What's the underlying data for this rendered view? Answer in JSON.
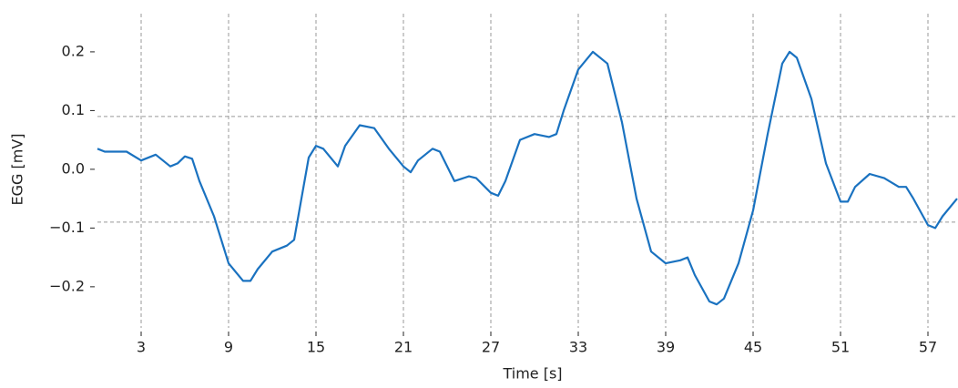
{
  "chart_data": {
    "type": "line",
    "xlabel": "Time [s]",
    "ylabel": "EGG [mV]",
    "x": [
      0,
      0.5,
      2,
      3,
      4,
      5,
      5.5,
      6,
      6.5,
      7,
      8,
      9,
      10,
      10.5,
      11,
      12,
      13,
      13.5,
      14,
      14.5,
      15,
      15.5,
      16.5,
      17,
      18,
      19,
      20,
      21,
      21.5,
      22,
      23,
      23.5,
      24.5,
      25.5,
      26,
      27,
      27.5,
      28,
      29,
      30,
      31,
      31.5,
      32,
      33,
      34,
      35,
      36,
      37,
      38,
      39,
      40,
      40.5,
      41,
      42,
      42.5,
      43,
      44,
      45,
      46,
      47,
      47.5,
      48,
      49,
      50,
      51,
      51.5,
      52,
      53,
      54,
      55,
      55.5,
      56,
      57,
      57.5,
      58,
      59
    ],
    "series": [
      {
        "name": "EGG",
        "color": "#1a72c0",
        "values": [
          0.035,
          0.03,
          0.03,
          0.015,
          0.025,
          0.005,
          0.01,
          0.022,
          0.018,
          -0.02,
          -0.08,
          -0.16,
          -0.19,
          -0.19,
          -0.17,
          -0.14,
          -0.13,
          -0.12,
          -0.05,
          0.02,
          0.04,
          0.035,
          0.005,
          0.04,
          0.075,
          0.07,
          0.035,
          0.005,
          -0.005,
          0.015,
          0.035,
          0.03,
          -0.02,
          -0.012,
          -0.015,
          -0.04,
          -0.045,
          -0.02,
          0.05,
          0.06,
          0.055,
          0.06,
          0.1,
          0.17,
          0.2,
          0.18,
          0.08,
          -0.05,
          -0.14,
          -0.16,
          -0.155,
          -0.15,
          -0.18,
          -0.225,
          -0.23,
          -0.22,
          -0.16,
          -0.07,
          0.06,
          0.18,
          0.2,
          0.19,
          0.12,
          0.01,
          -0.055,
          -0.055,
          -0.03,
          -0.008,
          -0.015,
          -0.03,
          -0.03,
          -0.05,
          -0.095,
          -0.1,
          -0.08,
          -0.05
        ]
      }
    ],
    "xlim": [
      0,
      59
    ],
    "xticks": [
      3,
      9,
      15,
      21,
      27,
      33,
      39,
      45,
      51,
      57
    ],
    "ylim": [
      -0.27,
      0.265
    ],
    "yticks": [
      {
        "value": -0.2,
        "label": "−0.2"
      },
      {
        "value": -0.1,
        "label": "−0.1"
      },
      {
        "value": 0,
        "label": "0.0"
      },
      0.1,
      0.2
    ],
    "hlines": [
      0.09,
      -0.09
    ],
    "grid": "x"
  }
}
